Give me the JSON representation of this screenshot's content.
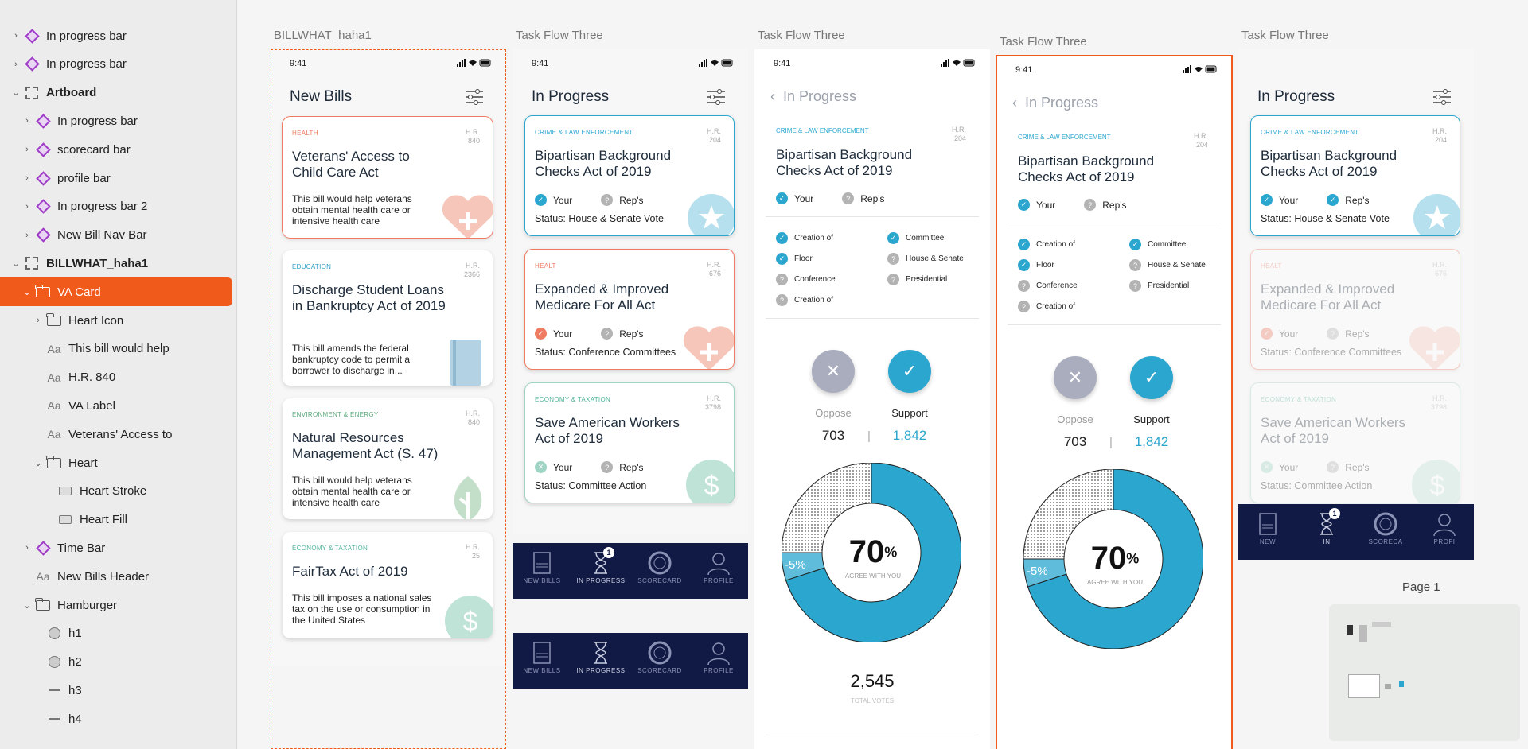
{
  "layers": [
    {
      "label": "In progress bar",
      "type": "component",
      "indent": 0,
      "chev": ">"
    },
    {
      "label": "In progress bar",
      "type": "component",
      "indent": 0,
      "chev": ">"
    },
    {
      "label": "Artboard",
      "type": "artboard",
      "indent": 0,
      "chev": "v",
      "bold": true
    },
    {
      "label": "In progress bar",
      "type": "component",
      "indent": 1,
      "chev": ">"
    },
    {
      "label": "scorecard bar",
      "type": "component",
      "indent": 1,
      "chev": ">"
    },
    {
      "label": "profile bar",
      "type": "component",
      "indent": 1,
      "chev": ">"
    },
    {
      "label": "In progress bar 2",
      "type": "component",
      "indent": 1,
      "chev": ">"
    },
    {
      "label": "New Bill Nav Bar",
      "type": "component",
      "indent": 1,
      "chev": ">"
    },
    {
      "label": "BILLWHAT_haha1",
      "type": "artboard",
      "indent": 0,
      "chev": "v",
      "bold": true
    },
    {
      "label": "VA Card",
      "type": "folder",
      "indent": 1,
      "chev": "v",
      "selected": true
    },
    {
      "label": "Heart Icon",
      "type": "folder",
      "indent": 2,
      "chev": ">"
    },
    {
      "label": "This bill would help",
      "type": "text",
      "indent": 2,
      "chev": ""
    },
    {
      "label": "H.R. 840",
      "type": "text",
      "indent": 2,
      "chev": ""
    },
    {
      "label": "VA Label",
      "type": "text",
      "indent": 2,
      "chev": ""
    },
    {
      "label": "Veterans' Access to",
      "type": "text",
      "indent": 2,
      "chev": ""
    },
    {
      "label": "Heart",
      "type": "folder",
      "indent": 2,
      "chev": "v"
    },
    {
      "label": "Heart Stroke",
      "type": "rect",
      "indent": 3,
      "chev": ""
    },
    {
      "label": "Heart Fill",
      "type": "rect",
      "indent": 3,
      "chev": ""
    },
    {
      "label": "Time Bar",
      "type": "component",
      "indent": 1,
      "chev": ">"
    },
    {
      "label": "New Bills Header",
      "type": "text",
      "indent": 1,
      "chev": ""
    },
    {
      "label": "Hamburger",
      "type": "folder",
      "indent": 1,
      "chev": "v"
    },
    {
      "label": "h1",
      "type": "circle",
      "indent": 2,
      "chev": ""
    },
    {
      "label": "h2",
      "type": "circle",
      "indent": 2,
      "chev": ""
    },
    {
      "label": "h3",
      "type": "line",
      "indent": 2,
      "chev": ""
    },
    {
      "label": "h4",
      "type": "line",
      "indent": 2,
      "chev": ""
    }
  ],
  "artboards": {
    "a1": "BILLWHAT_haha1",
    "a2": "Task Flow Three",
    "a3": "Task Flow Three",
    "a4": "Task Flow Three",
    "a5": "Task Flow Three"
  },
  "time": "9:41",
  "new_bills": {
    "header": "New Bills",
    "cards": [
      {
        "cat": "HEALTH",
        "hr1": "H.R.",
        "hr2": "840",
        "title": "Veterans' Access to Child Care Act",
        "desc": "This bill would help veterans obtain mental health care or intensive health care",
        "color": "#ef7b62"
      },
      {
        "cat": "EDUCATION",
        "hr1": "H.R.",
        "hr2": "2366",
        "title": "Discharge Student Loans in Bankruptcy Act of 2019",
        "desc": "This bill amends the federal bankruptcy code to permit a borrower to discharge in...",
        "color": "#2a9fc9"
      },
      {
        "cat": "ENVIRONMENT & ENERGY",
        "hr1": "H.R.",
        "hr2": "840",
        "title": "Natural Resources Management Act (S. 47)",
        "desc": "This bill would help veterans obtain mental health care or intensive health care",
        "color": "#5aa87a"
      },
      {
        "cat": "ECONOMY & TAXATION",
        "hr1": "H.R.",
        "hr2": "25",
        "title": "FairTax Act of 2019",
        "desc": "This bill imposes a national sales tax on the use or consumption in the United States",
        "color": "#4fb39a"
      }
    ]
  },
  "in_progress": {
    "header": "In Progress",
    "your": "Your",
    "reps": "Rep's",
    "cards": [
      {
        "cat": "CRIME & LAW ENFORCEMENT",
        "hr1": "H.R.",
        "hr2": "204",
        "title": "Bipartisan Background Checks Act of 2019",
        "status": "Status: House & Senate Vote",
        "color": "#2aa6cf"
      },
      {
        "cat": "HEALT",
        "hr1": "H.R.",
        "hr2": "676",
        "title": "Expanded & Improved Medicare For All Act",
        "status": "Status: Conference Committees",
        "color": "#ef7b62"
      },
      {
        "cat": "ECONOMY & TAXATION",
        "hr1": "H.R.",
        "hr2": "3798",
        "title": "Save American Workers Act of 2019",
        "status": "Status: Committee Action",
        "color": "#4fb39a"
      }
    ]
  },
  "nav": {
    "new_bills": "NEW BILLS",
    "in_progress": "IN PROGRESS",
    "scorecard": "SCORECARD",
    "profile": "PROFILE",
    "new_short": "NEW",
    "in_short": "IN",
    "scorecard_short": "SCORECA",
    "profile_short": "PROFI",
    "badge": "1"
  },
  "detail": {
    "header": "In Progress",
    "cat": "CRIME & LAW ENFORCEMENT",
    "hr1": "H.R.",
    "hr2": "204",
    "title": "Bipartisan Background Checks Act of 2019",
    "your": "Your",
    "reps": "Rep's",
    "steps_left": [
      "Creation of",
      "Floor",
      "Conference",
      "Creation of"
    ],
    "steps_right": [
      "Committee",
      "House & Senate",
      "Presidential"
    ],
    "oppose": "Oppose",
    "support": "Support",
    "oppose_count": "703",
    "support_count": "1,842",
    "sep": "|",
    "percent": "70",
    "percent_sign": "%",
    "agree": "AGREE WITH YOU",
    "minus": "-5%",
    "total": "2,545",
    "total_label": "TOTAL VOTES",
    "agree_fraction": 0.7,
    "minus_fraction": 0.05
  },
  "page": "Page 1",
  "colors": {
    "accent": "#f05a1a",
    "blue": "#2aa6cf",
    "navy": "#111a44",
    "red": "#ef7b62",
    "green": "#4fb39a"
  }
}
